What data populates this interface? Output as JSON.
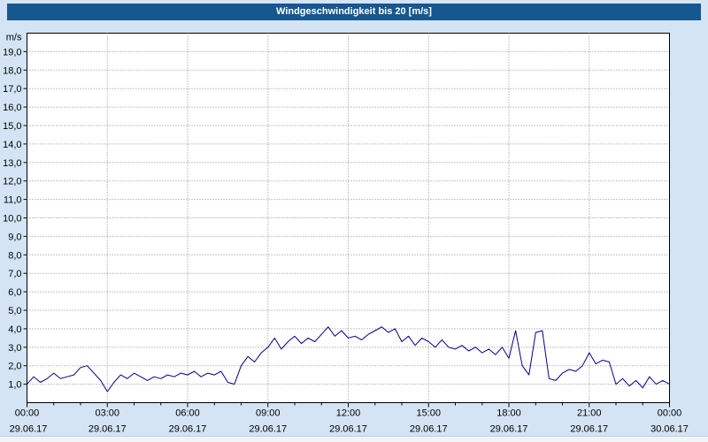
{
  "title": "Windgeschwindigkeit bis 20 [m/s]",
  "colors": {
    "titlebar_bg": "#17578f",
    "background": "#d4e4f4",
    "plot_bg": "#ffffff",
    "line": "#00008b",
    "grid": "#8c8c8c",
    "axis": "#000000"
  },
  "chart_data": {
    "type": "line",
    "title": "Windgeschwindigkeit bis 20 [m/s]",
    "ylabel": "m/s",
    "ylim": [
      0,
      20
    ],
    "xlim_hours": [
      0,
      24
    ],
    "grid": "dotted",
    "legend": "none",
    "y_tick_step": 1,
    "y_tick_labels": [
      "1,0",
      "2,0",
      "3,0",
      "4,0",
      "5,0",
      "6,0",
      "7,0",
      "8,0",
      "9,0",
      "10,0",
      "11,0",
      "12,0",
      "13,0",
      "14,0",
      "15,0",
      "16,0",
      "17,0",
      "18,0",
      "19,0"
    ],
    "x_ticks": [
      {
        "hour": 0,
        "time": "00:00",
        "date": "29.06.17"
      },
      {
        "hour": 3,
        "time": "03:00",
        "date": "29.06.17"
      },
      {
        "hour": 6,
        "time": "06:00",
        "date": "29.06.17"
      },
      {
        "hour": 9,
        "time": "09:00",
        "date": "29.06.17"
      },
      {
        "hour": 12,
        "time": "12:00",
        "date": "29.06.17"
      },
      {
        "hour": 15,
        "time": "15:00",
        "date": "29.06.17"
      },
      {
        "hour": 18,
        "time": "18:00",
        "date": "29.06.17"
      },
      {
        "hour": 21,
        "time": "21:00",
        "date": "29.06.17"
      },
      {
        "hour": 24,
        "time": "00:00",
        "date": "30.06.17"
      }
    ],
    "series": [
      {
        "name": "Windgeschwindigkeit",
        "x_start_hour": 0,
        "x_step_hours": 0.25,
        "values": [
          1.0,
          1.4,
          1.1,
          1.3,
          1.6,
          1.3,
          1.4,
          1.5,
          1.9,
          2.0,
          1.6,
          1.2,
          0.6,
          1.1,
          1.5,
          1.3,
          1.6,
          1.4,
          1.2,
          1.4,
          1.3,
          1.5,
          1.4,
          1.6,
          1.5,
          1.7,
          1.4,
          1.6,
          1.5,
          1.7,
          1.1,
          1.0,
          2.0,
          2.5,
          2.2,
          2.7,
          3.0,
          3.5,
          2.9,
          3.3,
          3.6,
          3.2,
          3.5,
          3.3,
          3.7,
          4.1,
          3.6,
          3.9,
          3.5,
          3.6,
          3.4,
          3.7,
          3.9,
          4.1,
          3.8,
          4.0,
          3.3,
          3.6,
          3.1,
          3.5,
          3.3,
          3.0,
          3.4,
          3.0,
          2.9,
          3.1,
          2.8,
          3.0,
          2.7,
          2.9,
          2.6,
          3.0,
          2.4,
          3.9,
          2.0,
          1.5,
          3.8,
          3.9,
          1.3,
          1.2,
          1.6,
          1.8,
          1.7,
          2.0,
          2.7,
          2.1,
          2.3,
          2.2,
          1.0,
          1.3,
          0.9,
          1.2,
          0.8,
          1.4,
          1.0,
          1.2,
          1.0
        ]
      }
    ]
  }
}
